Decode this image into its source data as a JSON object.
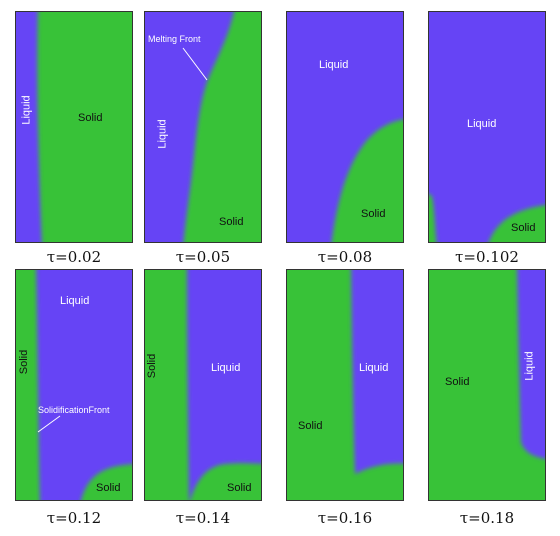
{
  "colors": {
    "liquid": "#6644f5",
    "solid": "#38c238"
  },
  "panels": [
    {
      "caption": "τ=0.02",
      "labels": {
        "liquid": "Liquid",
        "solid": "Solid"
      }
    },
    {
      "caption": "τ=0.05",
      "labels": {
        "liquid": "Liquid",
        "solid": "Solid",
        "front": "Melting Front"
      }
    },
    {
      "caption": "τ=0.08",
      "labels": {
        "liquid": "Liquid",
        "solid": "Solid"
      }
    },
    {
      "caption": "τ=0.102",
      "labels": {
        "liquid": "Liquid",
        "solid": "Solid"
      }
    },
    {
      "caption": "τ=0.12",
      "labels": {
        "liquid": "Liquid",
        "solid_left": "Solid",
        "solid": "Solid",
        "front": "SolidificationFront"
      }
    },
    {
      "caption": "τ=0.14",
      "labels": {
        "liquid": "Liquid",
        "solid_left": "Solid",
        "solid": "Solid"
      }
    },
    {
      "caption": "τ=0.16",
      "labels": {
        "liquid": "Liquid",
        "solid": "Solid"
      }
    },
    {
      "caption": "τ=0.18",
      "labels": {
        "liquid": "Liquid",
        "solid": "Solid"
      }
    }
  ]
}
